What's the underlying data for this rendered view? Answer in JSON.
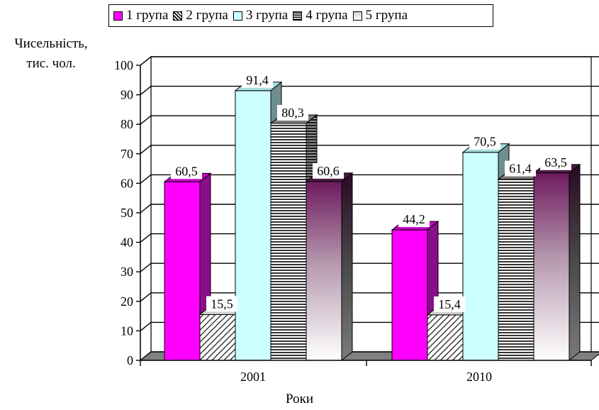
{
  "chart_data": {
    "type": "bar",
    "categories": [
      "2001",
      "2010"
    ],
    "series": [
      {
        "name": "1 група",
        "values": [
          60.5,
          44.2
        ]
      },
      {
        "name": "2 група",
        "values": [
          15.5,
          15.4
        ]
      },
      {
        "name": "3 група",
        "values": [
          91.4,
          70.5
        ]
      },
      {
        "name": "4 група",
        "values": [
          80.3,
          61.4
        ]
      },
      {
        "name": "5 група",
        "values": [
          60.6,
          63.5
        ]
      }
    ],
    "value_labels": [
      [
        "60,5",
        "44,2"
      ],
      [
        "15,5",
        "15,4"
      ],
      [
        "91,4",
        "70,5"
      ],
      [
        "80,3",
        "61,4"
      ],
      [
        "60,6",
        "63,5"
      ]
    ],
    "yticks": [
      "0",
      "10",
      "20",
      "30",
      "40",
      "50",
      "60",
      "70",
      "80",
      "90",
      "100"
    ],
    "ylim": [
      0,
      100
    ],
    "ylabel_line1": "Чисельність,",
    "ylabel_line2": "тис. чол.",
    "xlabel": "Роки",
    "grid": true,
    "legend_position": "top",
    "colors": {
      "series1": "#ff00ff",
      "series1_side": "#8a0d8a",
      "series3": "#ccffff",
      "series3_side": "#6f8f8f",
      "series5_top": "#6e1a5e",
      "series5_bottom": "#ffffff",
      "floor": "#808080",
      "wall": "#ffffff"
    },
    "patterns": {
      "series2": "diagonal-hatch",
      "series4": "horizontal-lines",
      "series5": "vertical-gradient"
    }
  }
}
